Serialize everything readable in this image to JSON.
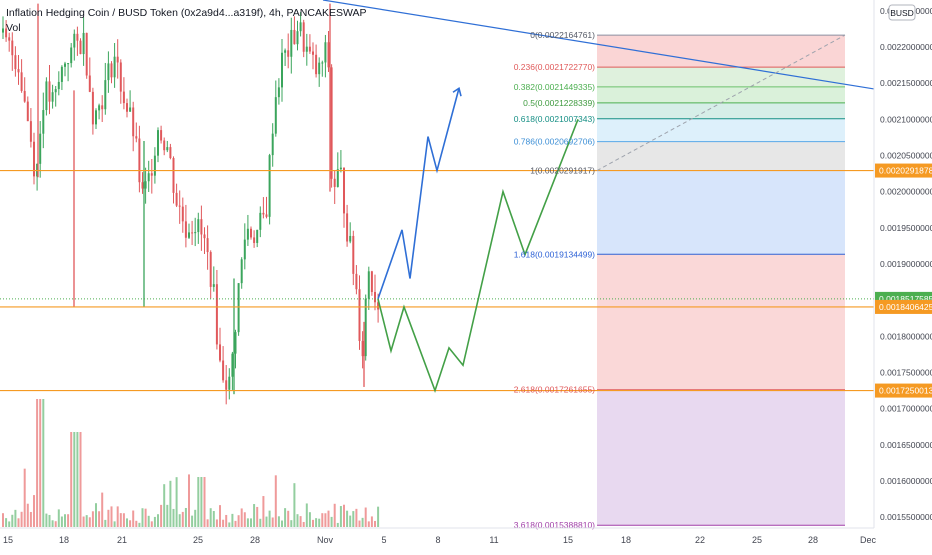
{
  "header": {
    "symbol_title": "Inflation Hedging Coin / BUSD Token (0x2a9d4...a319f), 4h, PANCAKESWAP",
    "volume_label": "Vol",
    "currency_button": "BUSD"
  },
  "colors": {
    "up": "#3ba55c",
    "down": "#e0585b",
    "trend": "#2f6fd6",
    "projection_green": "#43a047",
    "level_orange": "#f59a23",
    "price_marker": "#4caf50"
  },
  "chart_data": {
    "type": "candlestick",
    "title": "",
    "ylim": [
      0.001535,
      0.002265
    ],
    "x_ticks": [
      "15",
      "18",
      "21",
      "25",
      "28",
      "Nov",
      "5",
      "8",
      "11",
      "15",
      "18",
      "22",
      "25",
      "28",
      "Dec"
    ],
    "y_ticks": [
      "0.0022500000",
      "0.0022000000",
      "0.0021500000",
      "0.0021000000",
      "0.0020500000",
      "0.0020000000",
      "0.0019500000",
      "0.0019000000",
      "0.0018500000",
      "0.0018000000",
      "0.0017500000",
      "0.0017000000",
      "0.0016500000",
      "0.0016000000",
      "0.0015500000"
    ],
    "price_labels": [
      {
        "text": "0.0020291878",
        "value": 0.0020291878,
        "color": "#f59a23"
      },
      {
        "text": "0.0018517585",
        "value": 0.0018517585,
        "color": "#4caf50"
      },
      {
        "text": "0.0018406425",
        "value": 0.0018406425,
        "color": "#f59a23"
      },
      {
        "text": "0.0017250013",
        "value": 0.0017250013,
        "color": "#f59a23"
      }
    ],
    "horizontal_levels": [
      0.0020291878,
      0.0018406425,
      0.0017250013
    ],
    "fib_levels": [
      {
        "label": "0(0.0022164761)",
        "value": 0.0022164761,
        "line": "#8a8fa0",
        "fill": "#f9d0d0",
        "text": "#555a66"
      },
      {
        "label": "0.236(0.0021722770)",
        "value": 0.002172277,
        "line": "#e05a5a",
        "fill": "#dcefd9",
        "text": "#e05a5a"
      },
      {
        "label": "0.382(0.0021449335)",
        "value": 0.0021449335,
        "line": "#6cc16c",
        "fill": "#d6efd6",
        "text": "#4caf50"
      },
      {
        "label": "0.5(0.0021228339)",
        "value": 0.0021228339,
        "line": "#4caf50",
        "fill": "#d2ece6",
        "text": "#3f9a3f"
      },
      {
        "label": "0.618(0.0021007343)",
        "value": 0.0021007343,
        "line": "#168f85",
        "fill": "#d9eefb",
        "text": "#168f85"
      },
      {
        "label": "0.786(0.0020692706)",
        "value": 0.0020692706,
        "line": "#5aa8e8",
        "fill": "#e4e4e4",
        "text": "#3d8fd6"
      },
      {
        "label": "1(0.0020291917)",
        "value": 0.0020291917,
        "line": "#8a8fa0",
        "fill": "#d3e2fb",
        "text": "#555a66"
      },
      {
        "label": "1.618(0.0019134499)",
        "value": 0.0019134499,
        "line": "#2e62d6",
        "fill": "#fad4d4",
        "text": "#2e62d6"
      },
      {
        "label": "2.618(0.0017261655)",
        "value": 0.0017261655,
        "line": "#e05a5a",
        "fill": "#e6d5ee",
        "text": "#e05a5a"
      },
      {
        "label": "3.618(0.0015388810)",
        "value": 0.001538881,
        "line": "#a13fa8",
        "fill": null,
        "text": "#a13fa8"
      }
    ],
    "trendline": {
      "p1": [
        0.0,
        0.002265
      ],
      "p2": [
        1.0,
        0.002142
      ]
    },
    "fib_diagonal": {
      "from": 0.0020291917,
      "to": 0.0022164761
    },
    "projection_blue": [
      0.0018517585,
      0.0019472,
      0.00188,
      0.0020762,
      0.0020292,
      0.002143
    ],
    "projection_green": [
      0.0018517585,
      0.00178,
      0.0018406,
      0.001725,
      0.001784,
      0.00176,
      0.002,
      0.001913,
      0.0021
    ]
  }
}
